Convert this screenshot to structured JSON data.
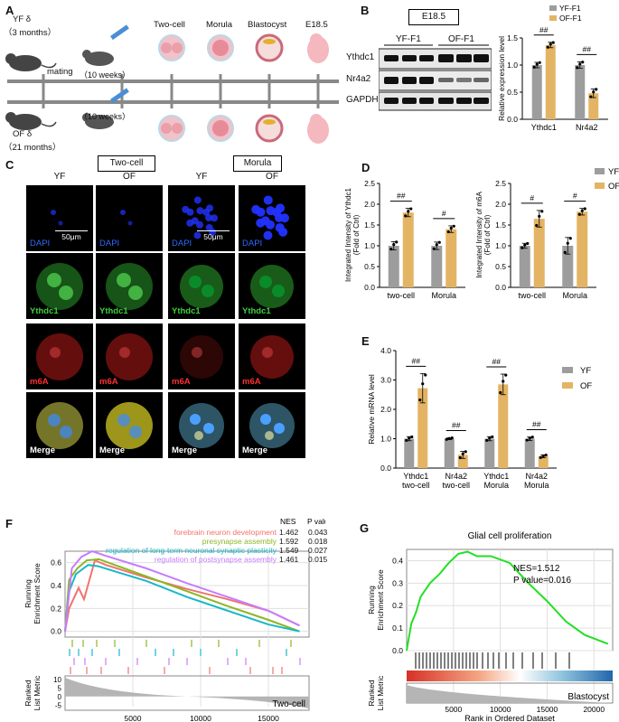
{
  "panels": {
    "A": {
      "label": "A",
      "yf_line1": "YF δ",
      "yf_line2": "（3 months）",
      "of_line1": "OF δ",
      "of_line2": "（21 months）",
      "mating": "mating",
      "female_age_1": "（10 weeks）",
      "female_age_2": "（10 weeks）",
      "stages": [
        "Two-cell",
        "Morula",
        "Blastocyst",
        "E18.5"
      ]
    },
    "B": {
      "label": "B",
      "e185": "E18.5",
      "group_yf": "YF-F1",
      "group_of": "OF-F1",
      "rows": [
        "Ythdc1",
        "Nr4a2",
        "GAPDH"
      ],
      "ylabel": "Relative expression level",
      "legend": [
        "YF-F1",
        "OF-F1"
      ],
      "sig": [
        "##",
        "##"
      ]
    },
    "C": {
      "label": "C",
      "stage1": "Two-cell",
      "stage2": "Morula",
      "cols": [
        "YF",
        "OF",
        "YF",
        "OF"
      ],
      "rows": [
        "DAPI",
        "Ythdc1",
        "m6A",
        "Merge"
      ],
      "scale1": "50μm",
      "scale2": "50μm"
    },
    "D": {
      "label": "D",
      "ylabel1a": "Integrated Intensity of Ythdc1",
      "ylabel1b": "(Fold of Ctrl)",
      "ylabel2a": "Integrated Intensity of m6A",
      "ylabel2b": "(Fold of Ctrl)",
      "legend": [
        "YF",
        "OF"
      ],
      "sig1": [
        "##",
        "#"
      ],
      "sig2": [
        "#",
        "#"
      ]
    },
    "E": {
      "label": "E",
      "ylabel": "Relative mRNA level",
      "legend": [
        "YF",
        "OF"
      ],
      "sig": [
        "##",
        "##",
        "##",
        "##"
      ]
    },
    "F": {
      "label": "F",
      "ylabel_top1": "Running",
      "ylabel_top2": "Enrichment Score",
      "ylabel_bot1": "Ranked",
      "ylabel_bot2": "List Metric",
      "xlabel": "Rank in Ordered Dataset",
      "corner": "Two-cell",
      "header_nes": "NES",
      "header_p": "P value",
      "terms": [
        {
          "name": "forebrain neuron development",
          "nes": "1.462",
          "p": "0.043",
          "color": "#f0746e"
        },
        {
          "name": "presynapse assembly",
          "nes": "1.592",
          "p": "0.018",
          "color": "#8db624"
        },
        {
          "name": "regulation of long-term neuronal synaptic plasticity",
          "nes": "1.549",
          "p": "0.027",
          "color": "#1ab7c7"
        },
        {
          "name": "regulation of postsynapse assembly",
          "nes": "1.461",
          "p": "0.015",
          "color": "#c77cff"
        }
      ]
    },
    "G": {
      "label": "G",
      "title": "Glial cell proliferation",
      "nes": "NES=1.512",
      "p": "P value=0.016",
      "ylabel_top1": "Running",
      "ylabel_top2": "Enrichment Score",
      "ylabel_bot1": "Ranked",
      "ylabel_bot2": "List Metric",
      "xlabel": "Rank in Ordered Dataset",
      "corner": "Blastocyst"
    }
  },
  "colors": {
    "yf": "#9d9d9d",
    "of": "#e3b463",
    "dapi": "#2233ff",
    "ythdc1": "#2ea82e",
    "m6a": "#e02020"
  },
  "chart_data": [
    {
      "type": "bar",
      "panel": "B",
      "categories": [
        "Ythdc1",
        "Nr4a2"
      ],
      "ylabel": "Relative expression level",
      "ylim": [
        0,
        1.5
      ],
      "yticks": [
        "0.0",
        "0.5",
        "1.0",
        "1.5"
      ],
      "series": [
        {
          "name": "YF-F1",
          "values": [
            1.0,
            1.0
          ],
          "err": [
            0.05,
            0.06
          ]
        },
        {
          "name": "OF-F1",
          "values": [
            1.37,
            0.48
          ],
          "err": [
            0.05,
            0.08
          ]
        }
      ]
    },
    {
      "type": "bar",
      "panel": "D1",
      "categories": [
        "two-cell",
        "Morula"
      ],
      "ylabel": "Integrated Intensity of Ythdc1 (Fold of Ctrl)",
      "ylim": [
        0,
        2.5
      ],
      "yticks": [
        "0.0",
        "0.5",
        "1.0",
        "1.5",
        "2.0",
        "2.5"
      ],
      "series": [
        {
          "name": "YF",
          "values": [
            1.0,
            1.0
          ],
          "err": [
            0.1,
            0.09
          ]
        },
        {
          "name": "OF",
          "values": [
            1.8,
            1.4
          ],
          "err": [
            0.1,
            0.08
          ]
        }
      ]
    },
    {
      "type": "bar",
      "panel": "D2",
      "categories": [
        "two-cell",
        "Morula"
      ],
      "ylabel": "Integrated Intensity of m6A (Fold of Ctrl)",
      "ylim": [
        0,
        2.5
      ],
      "yticks": [
        "0.0",
        "0.5",
        "1.0",
        "1.5",
        "2.0",
        "2.5"
      ],
      "series": [
        {
          "name": "YF",
          "values": [
            1.0,
            1.0
          ],
          "err": [
            0.06,
            0.2
          ]
        },
        {
          "name": "OF",
          "values": [
            1.65,
            1.82
          ],
          "err": [
            0.2,
            0.08
          ]
        }
      ]
    },
    {
      "type": "bar",
      "panel": "E",
      "categories": [
        "Ythdc1 two-cell",
        "Nr4a2 two-cell",
        "Ythdc1 Morula",
        "Nr4a2 Morula"
      ],
      "ylabel": "Relative mRNA level",
      "ylim": [
        0,
        4.0
      ],
      "yticks": [
        "0.0",
        "1.0",
        "2.0",
        "3.0",
        "4.0"
      ],
      "series": [
        {
          "name": "YF",
          "values": [
            1.0,
            1.0,
            1.0,
            1.0
          ],
          "err": [
            0.07,
            0.03,
            0.07,
            0.06
          ]
        },
        {
          "name": "OF",
          "values": [
            2.72,
            0.45,
            2.85,
            0.4
          ],
          "err": [
            0.5,
            0.12,
            0.35,
            0.05
          ]
        }
      ]
    },
    {
      "type": "line",
      "panel": "F",
      "xlabel": "Rank in Ordered Dataset",
      "ylabel": "Running Enrichment Score",
      "xlim": [
        0,
        18000
      ],
      "xticks": [
        "5000",
        "10000",
        "15000"
      ],
      "ylim_top": [
        -0.05,
        0.7
      ],
      "yticks_top": [
        "0.0",
        "0.2",
        "0.4",
        "0.6"
      ],
      "ylim_bottom": [
        -8,
        12
      ],
      "yticks_bottom": [
        "10",
        "5",
        "0",
        "-5"
      ],
      "series": [
        {
          "name": "forebrain neuron development",
          "x": [
            0,
            300,
            1000,
            1400,
            2200,
            3000,
            6000,
            9000,
            12000,
            15000,
            17300
          ],
          "y": [
            0,
            0.2,
            0.38,
            0.28,
            0.62,
            0.58,
            0.47,
            0.37,
            0.28,
            0.18,
            0.05
          ]
        },
        {
          "name": "presynapse assembly",
          "x": [
            0,
            300,
            900,
            1600,
            2500,
            6000,
            9000,
            12000,
            15000,
            17300
          ],
          "y": [
            0,
            0.45,
            0.55,
            0.62,
            0.63,
            0.48,
            0.35,
            0.22,
            0.1,
            0.0
          ]
        },
        {
          "name": "regulation of long-term neuronal synaptic plasticity",
          "x": [
            0,
            300,
            800,
            1700,
            2400,
            6000,
            9000,
            12000,
            15000,
            17300
          ],
          "y": [
            0,
            0.35,
            0.5,
            0.58,
            0.57,
            0.44,
            0.3,
            0.18,
            0.06,
            0.0
          ]
        },
        {
          "name": "regulation of postsynapse assembly",
          "x": [
            0,
            500,
            1200,
            2000,
            3000,
            6000,
            9000,
            12000,
            15000,
            17300
          ],
          "y": [
            0,
            0.55,
            0.65,
            0.7,
            0.66,
            0.55,
            0.42,
            0.3,
            0.18,
            0.05
          ]
        }
      ]
    },
    {
      "type": "line",
      "panel": "G",
      "title": "Glial cell proliferation",
      "xlabel": "Rank in Ordered Dataset",
      "ylabel": "Running Enrichment Score",
      "xlim": [
        0,
        22000
      ],
      "xticks": [
        "5000",
        "10000",
        "15000",
        "20000"
      ],
      "ylim": [
        0,
        0.45
      ],
      "yticks": [
        "0.0",
        "0.1",
        "0.2",
        "0.3",
        "0.4"
      ],
      "series": [
        {
          "name": "",
          "x": [
            0,
            500,
            1000,
            1500,
            2500,
            3500,
            4500,
            5500,
            6500,
            7500,
            9000,
            11000,
            13000,
            15000,
            17000,
            19000,
            21500
          ],
          "y": [
            0.0,
            0.12,
            0.17,
            0.24,
            0.3,
            0.34,
            0.39,
            0.43,
            0.44,
            0.42,
            0.42,
            0.39,
            0.3,
            0.22,
            0.13,
            0.07,
            0.03
          ]
        }
      ]
    }
  ]
}
